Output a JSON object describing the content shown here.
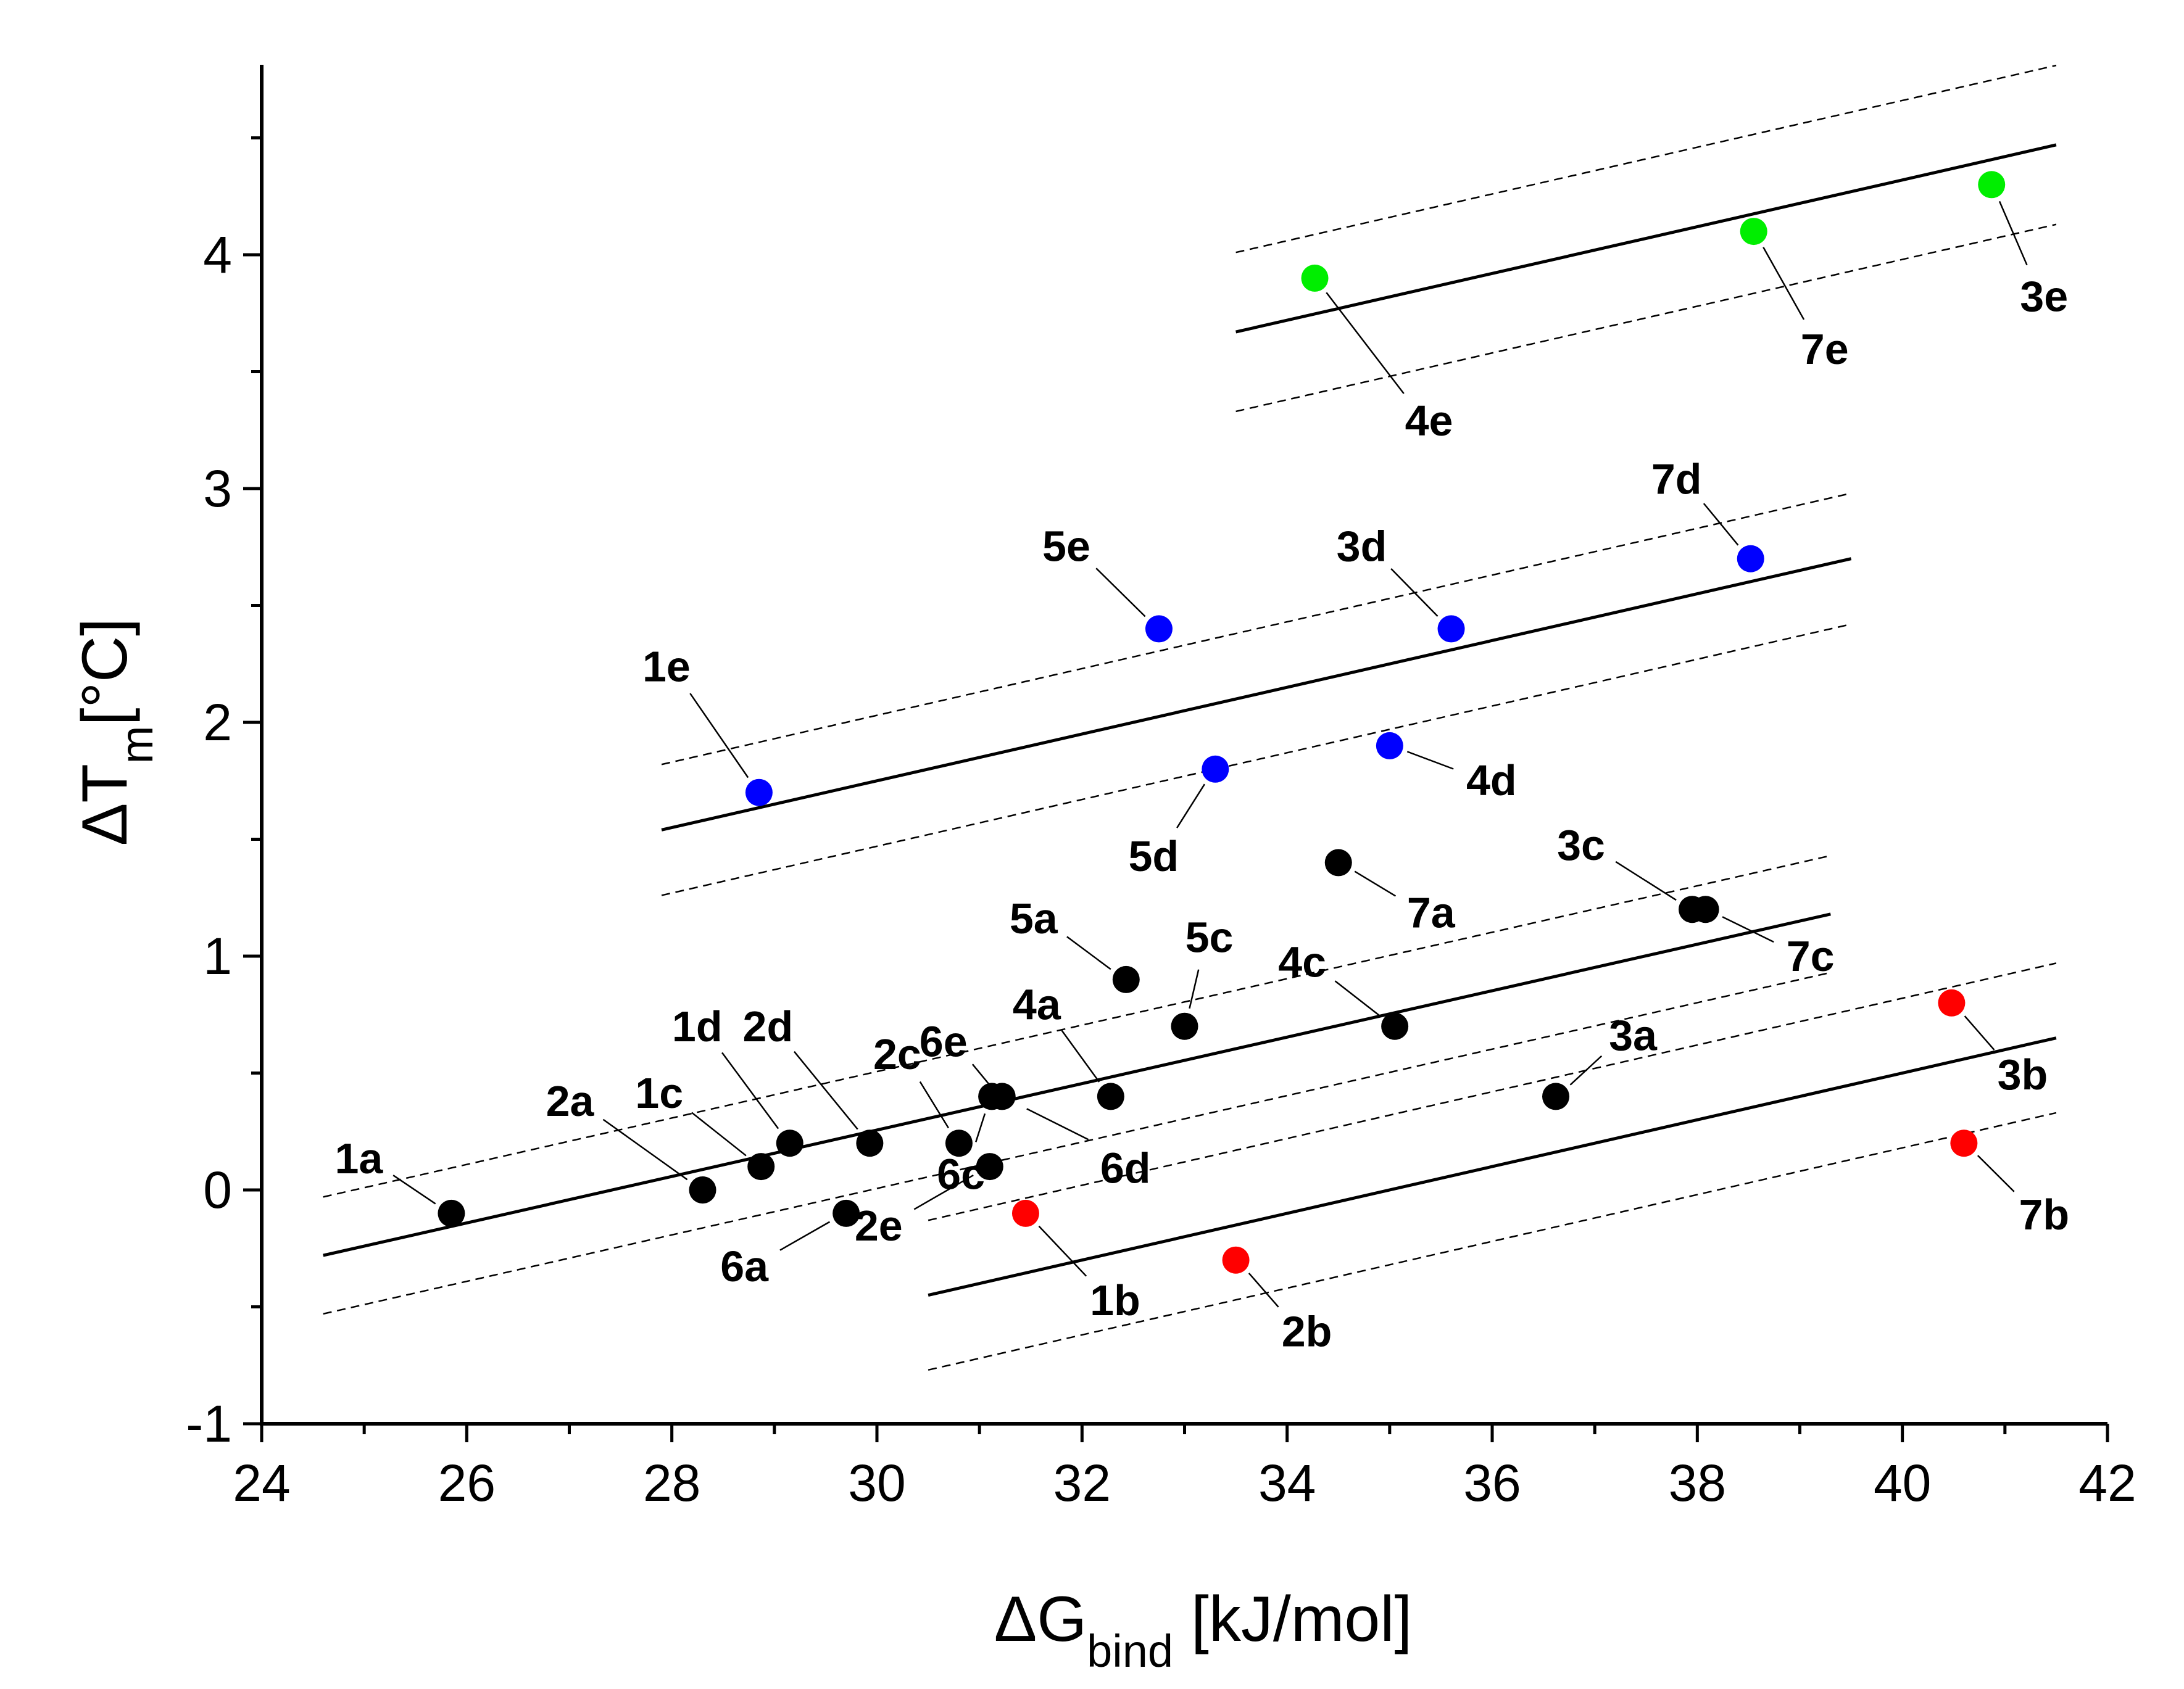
{
  "chart_data": {
    "type": "scatter",
    "title": "",
    "xlabel": {
      "main": "ΔG",
      "sub": "bind",
      "unit": " [kJ/mol]"
    },
    "ylabel": {
      "main": "ΔT",
      "sub": "m",
      "unit": "[°C]"
    },
    "xlim": [
      24,
      42
    ],
    "ylim": [
      -1,
      4.8
    ],
    "x_ticks": [
      24,
      26,
      28,
      30,
      32,
      34,
      36,
      38,
      40,
      42
    ],
    "x_tick_labels": [
      "24",
      "26",
      "28",
      "30",
      "32",
      "34",
      "36",
      "38",
      "40",
      "42"
    ],
    "y_ticks": [
      -1,
      0,
      1,
      2,
      3,
      4
    ],
    "y_tick_labels": [
      "-1",
      "0",
      "1",
      "2",
      "3",
      "4"
    ],
    "grid": false,
    "colors": {
      "black": "#000000",
      "blue": "#0000ff",
      "green": "#00ee00",
      "red": "#ff0000"
    },
    "series": [
      {
        "name": "black",
        "color": "#000000",
        "points": [
          {
            "label": "1a",
            "x": 25.85,
            "y": -0.1
          },
          {
            "label": "2a",
            "x": 28.3,
            "y": 0.0
          },
          {
            "label": "1c",
            "x": 28.87,
            "y": 0.1
          },
          {
            "label": "1d",
            "x": 29.15,
            "y": 0.2
          },
          {
            "label": "2d",
            "x": 29.93,
            "y": 0.2
          },
          {
            "label": "6a",
            "x": 29.7,
            "y": -0.1
          },
          {
            "label": "2c",
            "x": 30.8,
            "y": 0.2
          },
          {
            "label": "2e",
            "x": 31.1,
            "y": 0.1
          },
          {
            "label": "6c",
            "x": 31.12,
            "y": 0.4
          },
          {
            "label": "6e",
            "x": 31.22,
            "y": 0.4
          },
          {
            "label": "4a",
            "x": 32.28,
            "y": 0.4
          },
          {
            "label": "5a",
            "x": 32.43,
            "y": 0.9
          },
          {
            "label": "5c",
            "x": 33.0,
            "y": 0.7
          },
          {
            "label": "4c",
            "x": 35.05,
            "y": 0.7
          },
          {
            "label": "7a",
            "x": 34.5,
            "y": 1.4
          },
          {
            "label": "3a",
            "x": 36.62,
            "y": 0.4
          },
          {
            "label": "3c",
            "x": 37.95,
            "y": 1.2
          },
          {
            "label": "7c",
            "x": 38.08,
            "y": 1.2
          }
        ]
      },
      {
        "name": "blue",
        "color": "#0000ff",
        "points": [
          {
            "label": "1e",
            "x": 28.85,
            "y": 1.7
          },
          {
            "label": "5e",
            "x": 32.75,
            "y": 2.4
          },
          {
            "label": "5d",
            "x": 33.3,
            "y": 1.8
          },
          {
            "label": "3d",
            "x": 35.6,
            "y": 2.4
          },
          {
            "label": "4d",
            "x": 35.0,
            "y": 1.9
          },
          {
            "label": "7d",
            "x": 38.52,
            "y": 2.7
          }
        ]
      },
      {
        "name": "green",
        "color": "#00ee00",
        "points": [
          {
            "label": "4e",
            "x": 34.27,
            "y": 3.9
          },
          {
            "label": "7e",
            "x": 38.55,
            "y": 4.1
          },
          {
            "label": "3e",
            "x": 40.87,
            "y": 4.3
          }
        ]
      },
      {
        "name": "red",
        "color": "#ff0000",
        "points": [
          {
            "label": "1b",
            "x": 31.45,
            "y": -0.1
          },
          {
            "label": "2b",
            "x": 33.5,
            "y": -0.3
          },
          {
            "label": "3b",
            "x": 40.48,
            "y": 0.8
          },
          {
            "label": "7b",
            "x": 40.6,
            "y": 0.2
          }
        ]
      }
    ],
    "fit_lines": [
      {
        "name": "black-fit",
        "x": [
          24.6,
          39.3
        ],
        "y": [
          -0.28,
          1.18
        ],
        "band": 0.25
      },
      {
        "name": "blue-fit",
        "x": [
          27.9,
          39.5
        ],
        "y": [
          1.54,
          2.7
        ],
        "band": 0.28
      },
      {
        "name": "green-fit",
        "x": [
          33.5,
          41.5
        ],
        "y": [
          3.67,
          4.47
        ],
        "band": 0.34
      },
      {
        "name": "red-fit",
        "x": [
          30.5,
          41.5
        ],
        "y": [
          -0.45,
          0.65
        ],
        "band": 0.32
      }
    ]
  }
}
